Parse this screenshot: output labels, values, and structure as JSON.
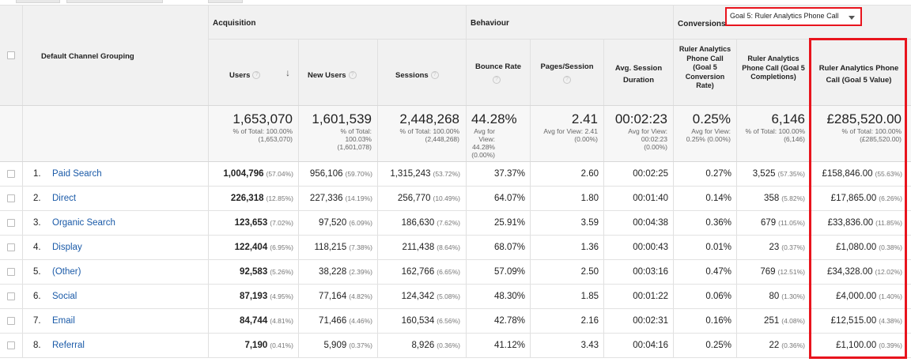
{
  "header": {
    "dimension_label": "Default Channel Grouping",
    "groups": {
      "acquisition": "Acquisition",
      "behaviour": "Behaviour",
      "conversions": "Conversions"
    },
    "goal_selector": {
      "value": "Goal 5: Ruler Analytics Phone Call"
    },
    "columns": {
      "users": "Users",
      "new_users": "New Users",
      "sessions": "Sessions",
      "bounce_rate": "Bounce Rate",
      "pages_session": "Pages/Session",
      "avg_session_duration": "Avg. Session Duration",
      "conv_rate": "Ruler Analytics Phone Call (Goal 5 Conversion Rate)",
      "completions": "Ruler Analytics Phone Call (Goal 5 Completions)",
      "value": "Ruler Analytics Phone Call (Goal 5 Value)"
    },
    "help_glyph": "?",
    "sort_arrow": "↓"
  },
  "totals": {
    "users": {
      "big": "1,653,070",
      "sub": "% of Total: 100.00% (1,653,070)"
    },
    "new_users": {
      "big": "1,601,539",
      "sub": "% of Total: 100.03% (1,601,078)"
    },
    "sessions": {
      "big": "2,448,268",
      "sub": "% of Total: 100.00% (2,448,268)"
    },
    "bounce_rate": {
      "big": "44.28%",
      "sub": "Avg for View: 44.28% (0.00%)"
    },
    "pages_session": {
      "big": "2.41",
      "sub": "Avg for View: 2.41 (0.00%)"
    },
    "avg_session_duration": {
      "big": "00:02:23",
      "sub": "Avg for View: 00:02:23 (0.00%)"
    },
    "conv_rate": {
      "big": "0.25%",
      "sub": "Avg for View: 0.25% (0.00%)"
    },
    "completions": {
      "big": "6,146",
      "sub": "% of Total: 100.00% (6,146)"
    },
    "value": {
      "big": "£285,520.00",
      "sub": "% of Total: 100.00% (£285,520.00)"
    }
  },
  "rows": [
    {
      "rank": "1.",
      "channel": "Paid Search",
      "users": "1,004,796",
      "users_pct": "(57.04%)",
      "new_users": "956,106",
      "new_users_pct": "(59.70%)",
      "sessions": "1,315,243",
      "sessions_pct": "(53.72%)",
      "bounce": "37.37%",
      "pages": "2.60",
      "duration": "00:02:25",
      "conv": "0.27%",
      "comp": "3,525",
      "comp_pct": "(57.35%)",
      "value": "£158,846.00",
      "value_pct": "(55.63%)"
    },
    {
      "rank": "2.",
      "channel": "Direct",
      "users": "226,318",
      "users_pct": "(12.85%)",
      "new_users": "227,336",
      "new_users_pct": "(14.19%)",
      "sessions": "256,770",
      "sessions_pct": "(10.49%)",
      "bounce": "64.07%",
      "pages": "1.80",
      "duration": "00:01:40",
      "conv": "0.14%",
      "comp": "358",
      "comp_pct": "(5.82%)",
      "value": "£17,865.00",
      "value_pct": "(6.26%)"
    },
    {
      "rank": "3.",
      "channel": "Organic Search",
      "users": "123,653",
      "users_pct": "(7.02%)",
      "new_users": "97,520",
      "new_users_pct": "(6.09%)",
      "sessions": "186,630",
      "sessions_pct": "(7.62%)",
      "bounce": "25.91%",
      "pages": "3.59",
      "duration": "00:04:38",
      "conv": "0.36%",
      "comp": "679",
      "comp_pct": "(11.05%)",
      "value": "£33,836.00",
      "value_pct": "(11.85%)"
    },
    {
      "rank": "4.",
      "channel": "Display",
      "users": "122,404",
      "users_pct": "(6.95%)",
      "new_users": "118,215",
      "new_users_pct": "(7.38%)",
      "sessions": "211,438",
      "sessions_pct": "(8.64%)",
      "bounce": "68.07%",
      "pages": "1.36",
      "duration": "00:00:43",
      "conv": "0.01%",
      "comp": "23",
      "comp_pct": "(0.37%)",
      "value": "£1,080.00",
      "value_pct": "(0.38%)"
    },
    {
      "rank": "5.",
      "channel": "(Other)",
      "users": "92,583",
      "users_pct": "(5.26%)",
      "new_users": "38,228",
      "new_users_pct": "(2.39%)",
      "sessions": "162,766",
      "sessions_pct": "(6.65%)",
      "bounce": "57.09%",
      "pages": "2.50",
      "duration": "00:03:16",
      "conv": "0.47%",
      "comp": "769",
      "comp_pct": "(12.51%)",
      "value": "£34,328.00",
      "value_pct": "(12.02%)"
    },
    {
      "rank": "6.",
      "channel": "Social",
      "users": "87,193",
      "users_pct": "(4.95%)",
      "new_users": "77,164",
      "new_users_pct": "(4.82%)",
      "sessions": "124,342",
      "sessions_pct": "(5.08%)",
      "bounce": "48.30%",
      "pages": "1.85",
      "duration": "00:01:22",
      "conv": "0.06%",
      "comp": "80",
      "comp_pct": "(1.30%)",
      "value": "£4,000.00",
      "value_pct": "(1.40%)"
    },
    {
      "rank": "7.",
      "channel": "Email",
      "users": "84,744",
      "users_pct": "(4.81%)",
      "new_users": "71,466",
      "new_users_pct": "(4.46%)",
      "sessions": "160,534",
      "sessions_pct": "(6.56%)",
      "bounce": "42.78%",
      "pages": "2.16",
      "duration": "00:02:31",
      "conv": "0.16%",
      "comp": "251",
      "comp_pct": "(4.08%)",
      "value": "£12,515.00",
      "value_pct": "(4.38%)"
    },
    {
      "rank": "8.",
      "channel": "Referral",
      "users": "7,190",
      "users_pct": "(0.41%)",
      "new_users": "5,909",
      "new_users_pct": "(0.37%)",
      "sessions": "8,926",
      "sessions_pct": "(0.36%)",
      "bounce": "41.12%",
      "pages": "3.43",
      "duration": "00:04:16",
      "conv": "0.25%",
      "comp": "22",
      "comp_pct": "(0.36%)",
      "value": "£1,100.00",
      "value_pct": "(0.39%)"
    }
  ]
}
